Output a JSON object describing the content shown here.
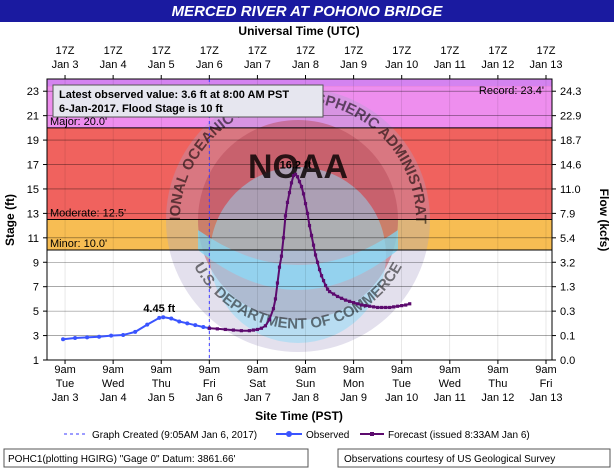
{
  "title": "MERCED RIVER AT POHONO BRIDGE",
  "top_axis_title": "Universal Time (UTC)",
  "bottom_axis_title": "Site Time (PST)",
  "left_axis_title": "Stage (ft)",
  "right_axis_title": "Flow (kcfs)",
  "info_box": {
    "line1": "Latest observed value: 3.6 ft at 8:00 AM PST",
    "line2_date": "6-Jan-2017.",
    "line2_rest": " Flood Stage is 10 ft"
  },
  "record_label": "Record: 23.4'",
  "watermark": {
    "agency": "NATIONAL OCEANIC AND ATMOSPHERIC ADMINISTRATION",
    "logo_text": "NOAA",
    "department": "U.S. DEPARTMENT OF COMMERCE"
  },
  "flood_categories": [
    {
      "name": "Major",
      "label": "Major: 20.0'",
      "from": 20,
      "to": 24,
      "color": "#f57a7a"
    },
    {
      "name": "Moderate",
      "label": "Moderate: 12.5'",
      "from": 12.5,
      "to": 20,
      "color": "#f0625e"
    },
    {
      "name": "Minor",
      "label": "Minor: 10.0'",
      "from": 10,
      "to": 12.5,
      "color": "#f7bd53"
    }
  ],
  "record_band": {
    "from": 23.4,
    "to": 24,
    "color": "#d483f0"
  },
  "major_band_color": "#ee8eee",
  "chart_data": {
    "type": "line",
    "ylim": [
      1,
      24
    ],
    "xlim": [
      "Jan 3 00:00",
      "Jan 13 12:00"
    ],
    "x_unit": "hours after Jan 3 00:00 PST",
    "top_ticks": [
      {
        "time": "17Z",
        "date": "Jan 3"
      },
      {
        "time": "17Z",
        "date": "Jan 4"
      },
      {
        "time": "17Z",
        "date": "Jan 5"
      },
      {
        "time": "17Z",
        "date": "Jan 6"
      },
      {
        "time": "17Z",
        "date": "Jan 7"
      },
      {
        "time": "17Z",
        "date": "Jan 8"
      },
      {
        "time": "17Z",
        "date": "Jan 9"
      },
      {
        "time": "17Z",
        "date": "Jan 10"
      },
      {
        "time": "17Z",
        "date": "Jan 11"
      },
      {
        "time": "17Z",
        "date": "Jan 12"
      },
      {
        "time": "17Z",
        "date": "Jan 13"
      }
    ],
    "bottom_ticks": [
      {
        "time": "9am",
        "day": "Tue",
        "date": "Jan 3"
      },
      {
        "time": "9am",
        "day": "Wed",
        "date": "Jan 4"
      },
      {
        "time": "9am",
        "day": "Thu",
        "date": "Jan 5"
      },
      {
        "time": "9am",
        "day": "Fri",
        "date": "Jan 6"
      },
      {
        "time": "9am",
        "day": "Sat",
        "date": "Jan 7"
      },
      {
        "time": "9am",
        "day": "Sun",
        "date": "Jan 8"
      },
      {
        "time": "9am",
        "day": "Mon",
        "date": "Jan 9"
      },
      {
        "time": "9am",
        "day": "Tue",
        "date": "Jan 10"
      },
      {
        "time": "9am",
        "day": "Wed",
        "date": "Jan 11"
      },
      {
        "time": "9am",
        "day": "Thu",
        "date": "Jan 12"
      },
      {
        "time": "9am",
        "day": "Fri",
        "date": "Jan 13"
      }
    ],
    "left_ticks": [
      1,
      3,
      5,
      7,
      9,
      11,
      13,
      15,
      17,
      19,
      21,
      23
    ],
    "right_ticks": [
      {
        "stage": 1,
        "flow": "0.0"
      },
      {
        "stage": 3,
        "flow": "0.1"
      },
      {
        "stage": 5,
        "flow": "0.3"
      },
      {
        "stage": 7,
        "flow": "1.3"
      },
      {
        "stage": 9,
        "flow": "3.2"
      },
      {
        "stage": 11,
        "flow": "5.4"
      },
      {
        "stage": 13,
        "flow": "7.9"
      },
      {
        "stage": 15,
        "flow": "11.0"
      },
      {
        "stage": 17,
        "flow": "14.6"
      },
      {
        "stage": 19,
        "flow": "18.7"
      },
      {
        "stage": 21,
        "flow": "22.9"
      },
      {
        "stage": 23,
        "flow": "24.3"
      }
    ],
    "graph_created_hour": 81,
    "series": [
      {
        "name": "Observed",
        "color": "#3a54ff",
        "hour": [
          8,
          14,
          20,
          26,
          32,
          38,
          44,
          50,
          56,
          58,
          62,
          66,
          70,
          74,
          78,
          81
        ],
        "stage": [
          2.7,
          2.8,
          2.85,
          2.9,
          3.0,
          3.05,
          3.3,
          3.9,
          4.45,
          4.5,
          4.4,
          4.15,
          4.0,
          3.85,
          3.7,
          3.6
        ]
      },
      {
        "name": "Forecast",
        "color": "#5c0a6e",
        "hour": [
          81,
          85,
          89,
          93,
          97,
          101,
          103,
          105,
          107,
          109,
          111,
          113,
          114,
          115,
          116,
          117,
          118,
          119,
          120,
          121,
          122,
          123,
          124,
          125,
          126,
          127,
          128,
          129,
          130,
          131,
          132,
          133,
          134,
          135,
          136,
          137,
          138,
          139,
          140,
          141,
          143,
          145,
          147,
          149,
          151,
          153,
          155,
          157,
          159,
          161,
          163,
          165,
          167,
          169,
          171,
          173,
          175,
          177,
          179,
          181
        ],
        "stage": [
          3.6,
          3.55,
          3.5,
          3.45,
          3.4,
          3.4,
          3.45,
          3.5,
          3.6,
          3.8,
          4.3,
          5.2,
          6.0,
          7.3,
          8.6,
          9.5,
          11.0,
          12.8,
          13.9,
          14.7,
          15.5,
          16.1,
          16.2,
          16.0,
          15.6,
          15.2,
          14.6,
          13.8,
          13.0,
          12.0,
          11.2,
          10.4,
          9.6,
          9.0,
          8.4,
          7.9,
          7.5,
          7.1,
          6.8,
          6.6,
          6.4,
          6.2,
          6.05,
          5.9,
          5.8,
          5.7,
          5.6,
          5.5,
          5.45,
          5.4,
          5.35,
          5.3,
          5.3,
          5.3,
          5.3,
          5.35,
          5.4,
          5.45,
          5.5,
          5.6
        ]
      }
    ],
    "annotations": [
      {
        "text": "4.45 ft",
        "hour": 56,
        "stage": 4.45,
        "color": "#3a54ff"
      },
      {
        "text": "16.2 ft",
        "hour": 124,
        "stage": 16.2,
        "color": "#5c0a6e"
      }
    ]
  },
  "legend": {
    "graph_created": "Graph Created (9:05AM Jan 6, 2017)",
    "observed": "Observed",
    "forecast": "Forecast (issued 8:33AM Jan 6)"
  },
  "footer": {
    "left": "POHC1(plotting HGIRG) \"Gage 0\" Datum: 3861.66'",
    "right": "Observations courtesy of US Geological Survey"
  },
  "colors": {
    "title_bar": "#1a1aa0",
    "observed": "#3a54ff",
    "forecast": "#5c0a6e",
    "info_text": "#3a3aff"
  }
}
